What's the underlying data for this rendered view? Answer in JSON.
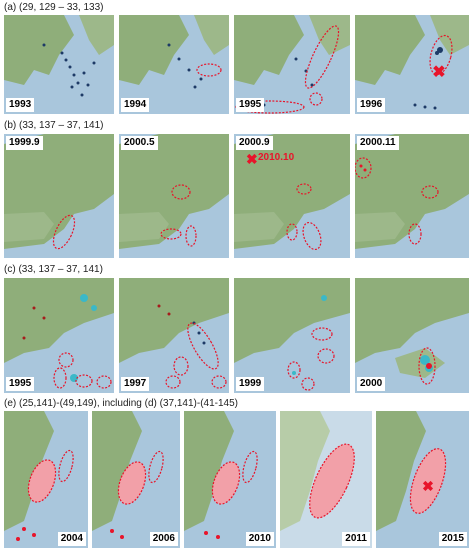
{
  "rows": [
    {
      "id": "a",
      "label": "(a) (29, 129 – 33, 133)",
      "panels": [
        "1993",
        "1994",
        "1995",
        "1996"
      ]
    },
    {
      "id": "b",
      "label": "(b) (33, 137 – 37, 141)",
      "panels": [
        "1999.9",
        "2000.5",
        "2000.9",
        "2000.11"
      ],
      "annotation": "2010.10"
    },
    {
      "id": "c",
      "label": "(c) (33, 137 – 37, 141)",
      "panels": [
        "1995",
        "1997",
        "1999",
        "2000"
      ]
    },
    {
      "id": "e",
      "label": "(e) (25,141)-(49,149), including (d) (37,141)-(41-145)",
      "panels": [
        "2004",
        "2006",
        "2010",
        "2011",
        "2015"
      ]
    }
  ],
  "colors": {
    "sea": "#a9c6dc",
    "land": "#8fae7a",
    "ellipse": "#e8142a",
    "marker": "#e8142a"
  }
}
